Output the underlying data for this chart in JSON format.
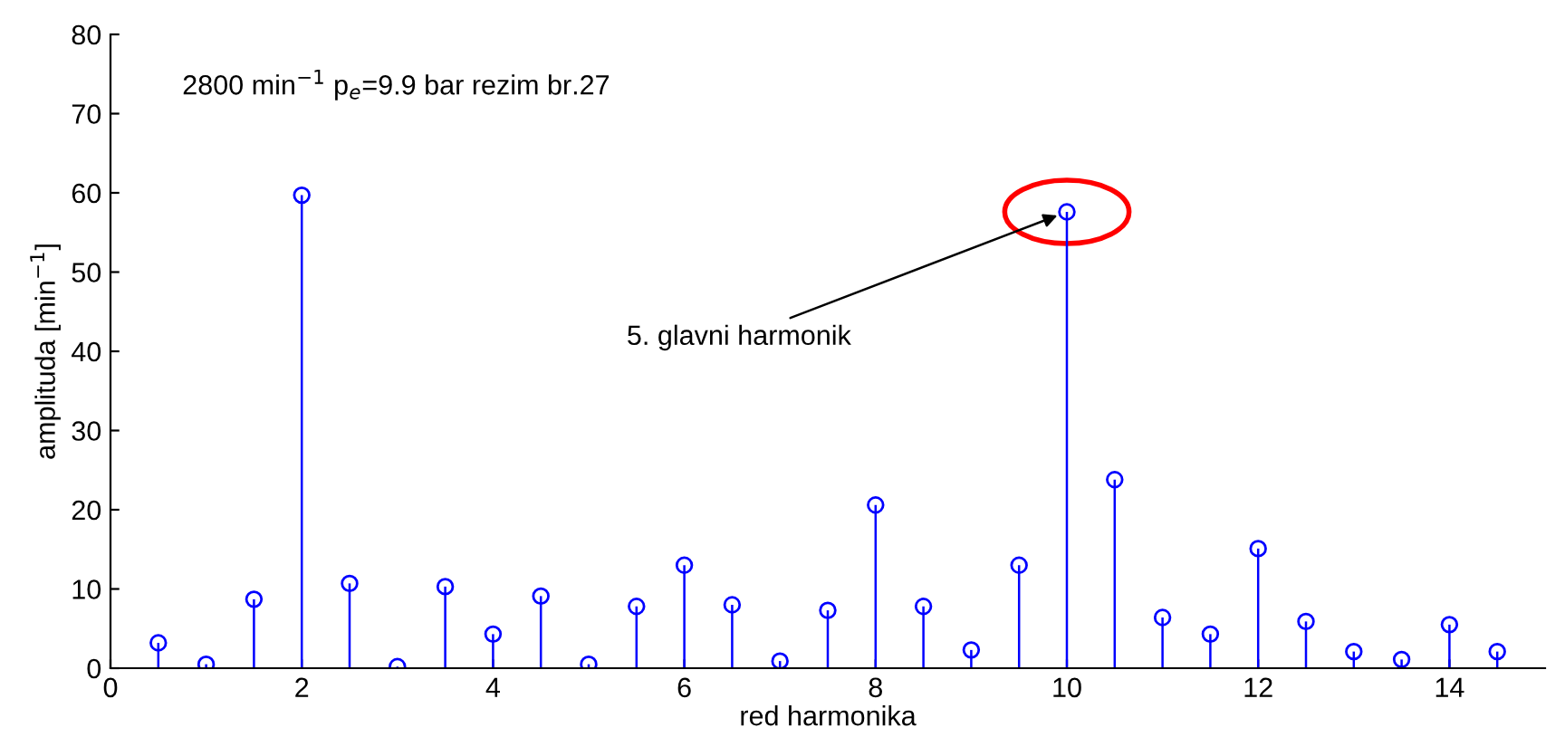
{
  "chart_data": {
    "type": "lollipop",
    "xlabel": "red harmonika",
    "ylabel": "amplituda [min$^{−1}$]",
    "x": [
      0.5,
      1,
      1.5,
      2,
      2.5,
      3,
      3.5,
      4,
      4.5,
      5,
      5.5,
      6,
      6.5,
      7,
      7.5,
      8,
      8.5,
      9,
      9.5,
      10,
      10.5,
      11,
      11.5,
      12,
      12.5,
      13,
      13.5,
      14,
      14.5
    ],
    "values": [
      3.2,
      0.5,
      8.7,
      59.7,
      10.7,
      0.2,
      10.3,
      4.3,
      9.1,
      0.5,
      7.8,
      13.0,
      8.0,
      0.9,
      7.3,
      20.6,
      7.8,
      2.3,
      13.0,
      57.6,
      23.8,
      6.4,
      4.3,
      15.1,
      5.9,
      2.1,
      1.1,
      5.5,
      2.1
    ],
    "color": "#0000ff",
    "marker": "circle",
    "xlim": [
      0,
      15
    ],
    "xticks": [
      0,
      2,
      4,
      6,
      8,
      10,
      12,
      14
    ],
    "ylim": [
      0,
      80
    ],
    "yticks": [
      0,
      10,
      20,
      30,
      40,
      50,
      60,
      70,
      80
    ],
    "legend": false,
    "annotations": [
      "2800 min$^{−1}$ p$_{e}$=9.9 bar rezim br.27",
      {
        "text": "5. glavni harmonik",
        "x": 10,
        "y": 57.6
      }
    ]
  }
}
